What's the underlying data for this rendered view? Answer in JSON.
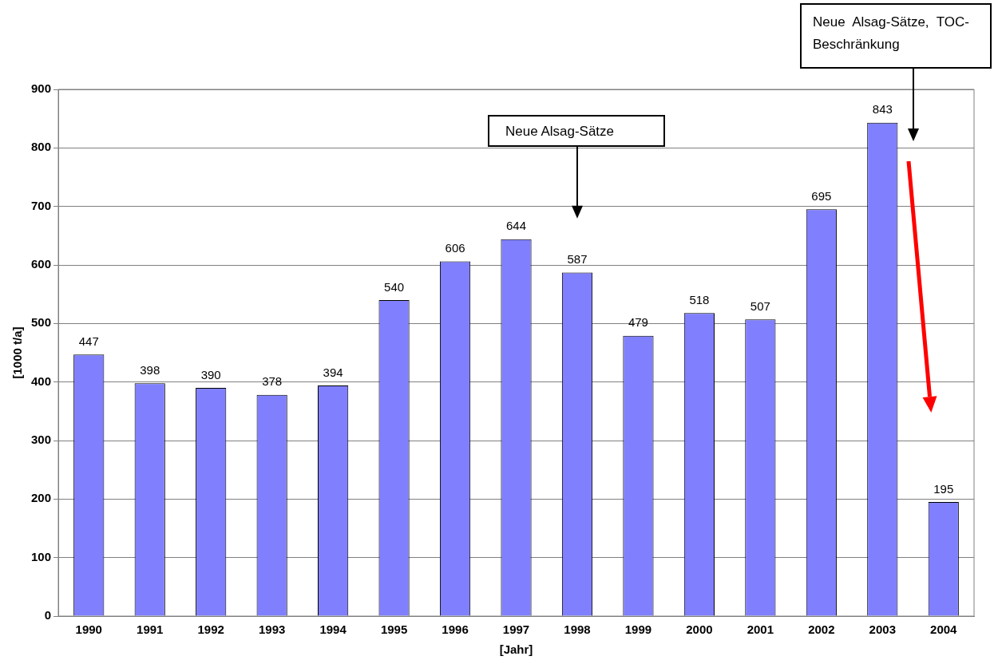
{
  "chart_data": {
    "type": "bar",
    "xlabel": "[Jahr]",
    "ylabel": "[1000 t/a]",
    "categories": [
      "1990",
      "1991",
      "1992",
      "1993",
      "1994",
      "1995",
      "1996",
      "1997",
      "1998",
      "1999",
      "2000",
      "2001",
      "2002",
      "2003",
      "2004"
    ],
    "values": [
      447,
      398,
      390,
      378,
      394,
      540,
      606,
      644,
      587,
      479,
      518,
      507,
      695,
      843,
      195
    ],
    "color": "#8080ff",
    "ylim": [
      0,
      900
    ],
    "yticks": [
      0,
      100,
      200,
      300,
      400,
      500,
      600,
      700,
      800,
      900
    ],
    "grid": "y",
    "data_labels": true,
    "annotations": [
      "Neue Alsag-Sätze",
      "Neue Alsag-Sätze, TOC-Beschränkung"
    ]
  }
}
